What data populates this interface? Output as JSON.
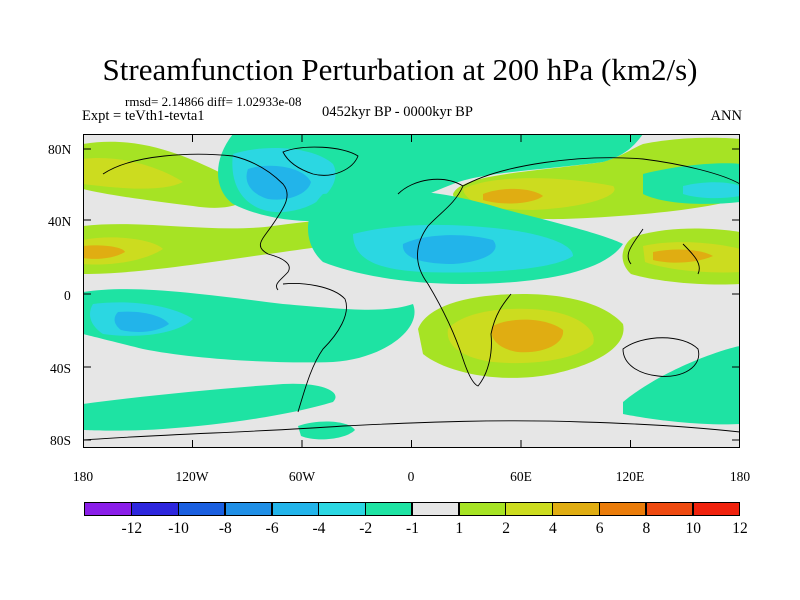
{
  "title": "Streamfunction Perturbation at 200 hPa (km2/s)",
  "stats_line": "rmsd= 2.14866 diff= 1.02933e-08",
  "experiment_label": "Expt = teVth1-tevta1",
  "period_label": "0452kyr BP - 0000kyr BP",
  "season_label": "ANN",
  "lat_labels": [
    "80N",
    "40N",
    "0",
    "40S",
    "80S"
  ],
  "lon_labels": [
    "180",
    "120W",
    "60W",
    "0",
    "60E",
    "120E",
    "180"
  ],
  "colorbar": {
    "labels": [
      "-12",
      "-10",
      "-8",
      "-6",
      "-4",
      "-2",
      "-1",
      "1",
      "2",
      "4",
      "6",
      "8",
      "10",
      "12"
    ],
    "colors": [
      "#8a1ee8",
      "#2d26dd",
      "#1a5fe0",
      "#1f8fe6",
      "#22b4ea",
      "#2bd7e2",
      "#1ee3a3",
      "#e6e6e6",
      "#a6e324",
      "#ccdc1f",
      "#e0ad12",
      "#ea7c0a",
      "#ef4a10",
      "#f0220d"
    ]
  },
  "field_colors": {
    "neutral": "#e6e6e6",
    "pos1": "#a6e324",
    "pos2": "#ccdc1f",
    "pos3": "#e0ad12",
    "neg1": "#1ee3a3",
    "neg2": "#2bd7e2",
    "neg3": "#22b4ea",
    "neg4": "#1f8fe6"
  }
}
